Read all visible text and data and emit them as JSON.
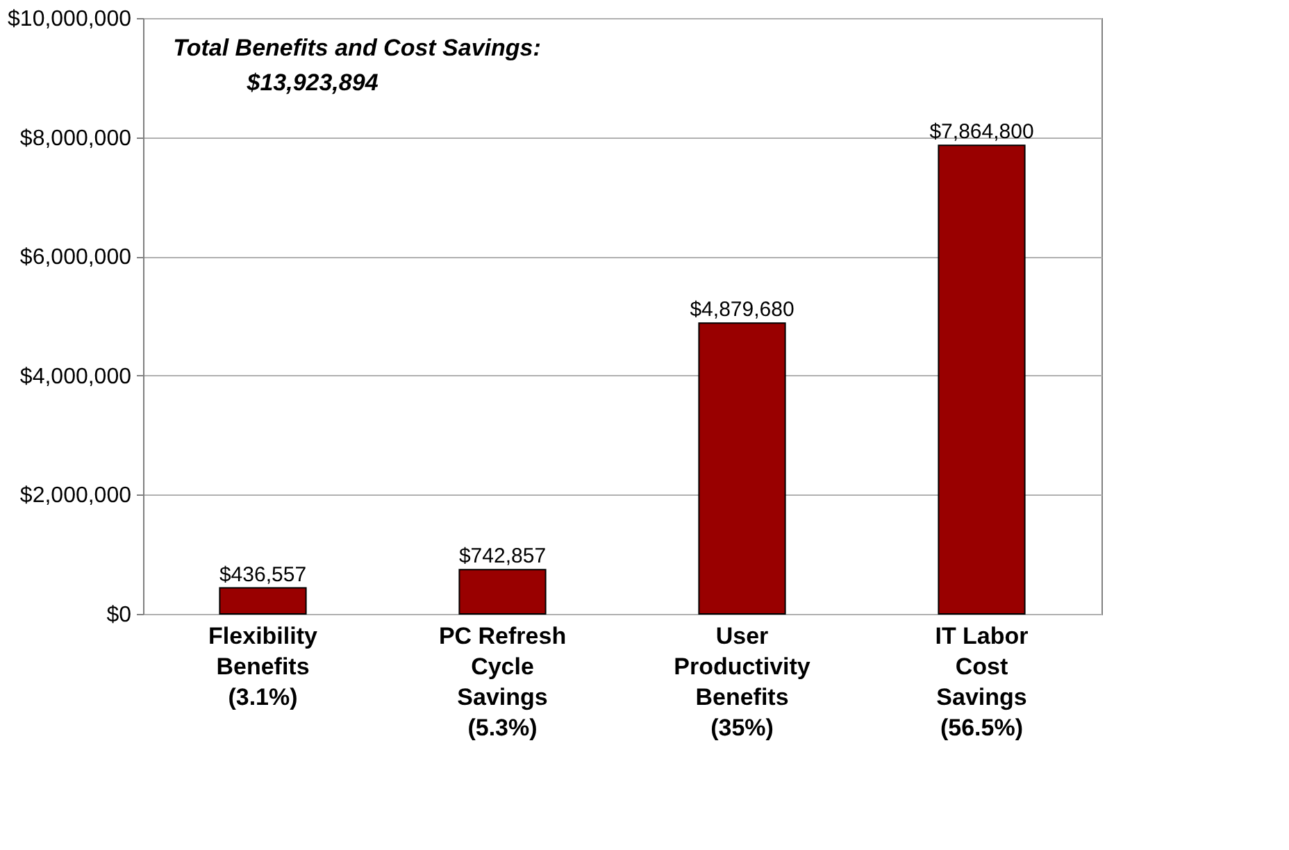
{
  "chart_data": {
    "type": "bar",
    "categories": [
      "Flexibility Benefits (3.1%)",
      "PC Refresh Cycle Savings (5.3%)",
      "User Productivity Benefits (35%)",
      "IT Labor Cost Savings (56.5%)"
    ],
    "values": [
      436557,
      742857,
      4879680,
      7864800
    ],
    "value_labels": [
      "$436,557",
      "$742,857",
      "$4,879,680",
      "$7,864,800"
    ],
    "color": "#990000",
    "ylim": [
      0,
      10000000
    ],
    "yticks": [
      {
        "value": 0,
        "label": "$0"
      },
      {
        "value": 2000000,
        "label": "$2,000,000"
      },
      {
        "value": 4000000,
        "label": "$4,000,000"
      },
      {
        "value": 6000000,
        "label": "$6,000,000"
      },
      {
        "value": 8000000,
        "label": "$8,000,000"
      },
      {
        "value": 10000000,
        "label": "$10,000,000"
      }
    ],
    "grid": "y",
    "annotations": [
      "Total Benefits and Cost Savings:",
      "$13,923,894"
    ]
  }
}
